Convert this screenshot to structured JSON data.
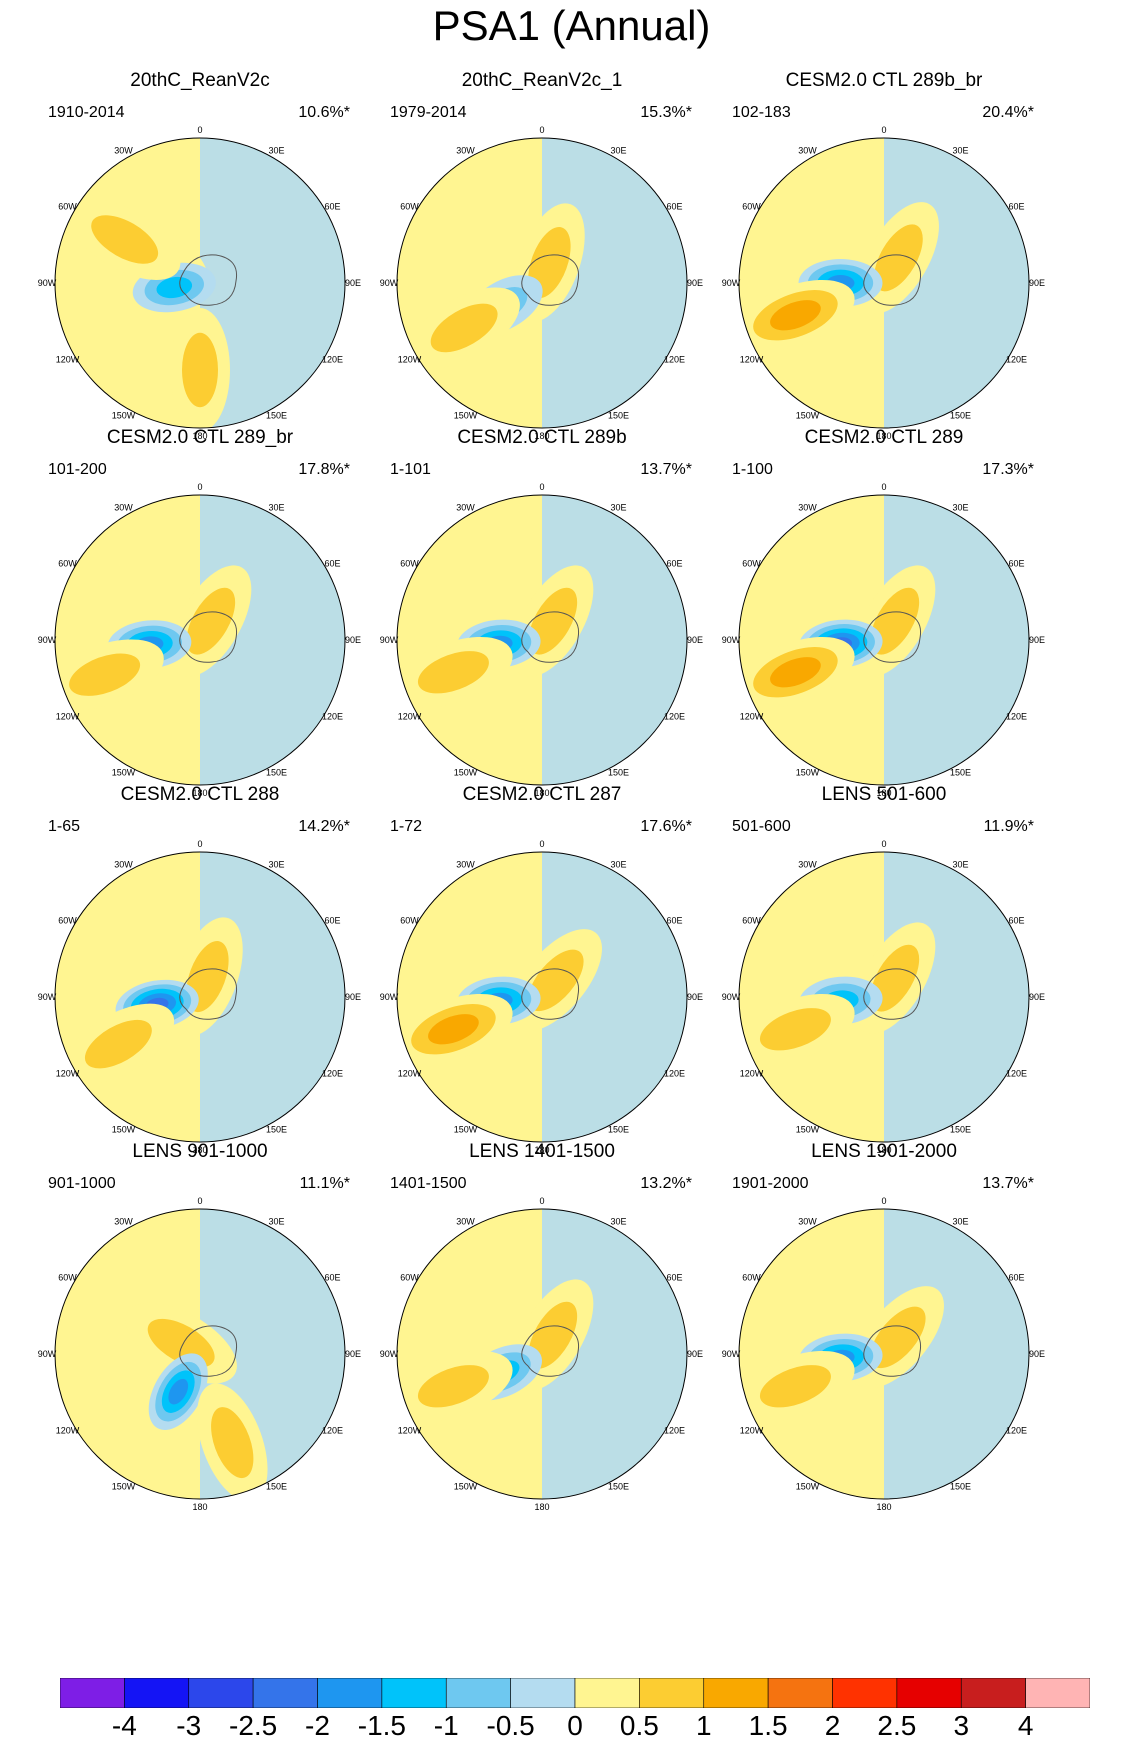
{
  "title": "PSA1 (Annual)",
  "chart_data": [
    {
      "type": "polar-contour-map",
      "title": "20thC_ReanV2c",
      "period": "1910-2014",
      "variance_explained": "10.6%*",
      "pattern": [
        {
          "lon": -60,
          "r": 0.38,
          "value": 0.5
        },
        {
          "lon": -100,
          "r": 0.18,
          "value": -1.5
        },
        {
          "lon": 180,
          "r": 0.6,
          "value": 1
        },
        {
          "lon": -60,
          "r": 0.6,
          "value": 1
        }
      ]
    },
    {
      "type": "polar-contour-map",
      "title": "20thC_ReanV2c_1",
      "period": "1979-2014",
      "variance_explained": "15.3%*",
      "pattern": [
        {
          "lon": 20,
          "r": 0.15,
          "value": 1
        },
        {
          "lon": -120,
          "r": 0.3,
          "value": -1
        },
        {
          "lon": -120,
          "r": 0.62,
          "value": 1
        }
      ]
    },
    {
      "type": "polar-contour-map",
      "title": "CESM2.0 CTL 289b_br",
      "period": "102-183",
      "variance_explained": "20.4%*",
      "pattern": [
        {
          "lon": 30,
          "r": 0.2,
          "value": 1
        },
        {
          "lon": -90,
          "r": 0.3,
          "value": -2
        },
        {
          "lon": -110,
          "r": 0.65,
          "value": 1.5
        }
      ]
    },
    {
      "type": "polar-contour-map",
      "title": "CESM2.0 CTL 289_br",
      "period": "101-200",
      "variance_explained": "17.8%*",
      "pattern": [
        {
          "lon": 30,
          "r": 0.15,
          "value": 1
        },
        {
          "lon": -95,
          "r": 0.35,
          "value": -2
        },
        {
          "lon": -110,
          "r": 0.7,
          "value": 1
        }
      ]
    },
    {
      "type": "polar-contour-map",
      "title": "CESM2.0 CTL 289b",
      "period": "1-101",
      "variance_explained": "13.7%*",
      "pattern": [
        {
          "lon": 30,
          "r": 0.15,
          "value": 1
        },
        {
          "lon": -95,
          "r": 0.3,
          "value": -2
        },
        {
          "lon": -110,
          "r": 0.65,
          "value": 1
        }
      ]
    },
    {
      "type": "polar-contour-map",
      "title": "CESM2.0 CTL 289",
      "period": "1-100",
      "variance_explained": "17.3%*",
      "pattern": [
        {
          "lon": 30,
          "r": 0.15,
          "value": 1
        },
        {
          "lon": -95,
          "r": 0.3,
          "value": -2.5
        },
        {
          "lon": -110,
          "r": 0.65,
          "value": 1.5
        }
      ]
    },
    {
      "type": "polar-contour-map",
      "title": "CESM2.0 CTL 288",
      "period": "1-65",
      "variance_explained": "14.2%*",
      "pattern": [
        {
          "lon": 20,
          "r": 0.15,
          "value": 1
        },
        {
          "lon": -100,
          "r": 0.3,
          "value": -2.5
        },
        {
          "lon": -120,
          "r": 0.65,
          "value": 1
        }
      ]
    },
    {
      "type": "polar-contour-map",
      "title": "CESM2.0 CTL 287",
      "period": "1-72",
      "variance_explained": "17.6%*",
      "pattern": [
        {
          "lon": 40,
          "r": 0.15,
          "value": 1
        },
        {
          "lon": -95,
          "r": 0.3,
          "value": -2
        },
        {
          "lon": -110,
          "r": 0.65,
          "value": 1.5
        }
      ]
    },
    {
      "type": "polar-contour-map",
      "title": "LENS 501-600",
      "period": "501-600",
      "variance_explained": "11.9%*",
      "pattern": [
        {
          "lon": 30,
          "r": 0.15,
          "value": 1
        },
        {
          "lon": -95,
          "r": 0.3,
          "value": -1.5
        },
        {
          "lon": -110,
          "r": 0.65,
          "value": 1
        }
      ]
    },
    {
      "type": "polar-contour-map",
      "title": "LENS 901-1000",
      "period": "901-1000",
      "variance_explained": "11.1%*",
      "pattern": [
        {
          "lon": -60,
          "r": 0.15,
          "value": 1
        },
        {
          "lon": -150,
          "r": 0.3,
          "value": -2
        },
        {
          "lon": 160,
          "r": 0.65,
          "value": 1
        }
      ]
    },
    {
      "type": "polar-contour-map",
      "title": "LENS 1401-1500",
      "period": "1401-1500",
      "variance_explained": "13.2%*",
      "pattern": [
        {
          "lon": 30,
          "r": 0.15,
          "value": 1
        },
        {
          "lon": -115,
          "r": 0.3,
          "value": -1.5
        },
        {
          "lon": -110,
          "r": 0.65,
          "value": 1
        }
      ]
    },
    {
      "type": "polar-contour-map",
      "title": "LENS 1901-2000",
      "period": "1901-2000",
      "variance_explained": "13.7%*",
      "pattern": [
        {
          "lon": 40,
          "r": 0.15,
          "value": 1
        },
        {
          "lon": -95,
          "r": 0.3,
          "value": -2
        },
        {
          "lon": -110,
          "r": 0.65,
          "value": 1
        }
      ]
    }
  ],
  "lon_labels": [
    "0",
    "30E",
    "60E",
    "90E",
    "120E",
    "150E",
    "180",
    "150W",
    "120W",
    "90W",
    "60W",
    "30W"
  ],
  "colorbar": {
    "labels": [
      "-4",
      "-3",
      "-2.5",
      "-2",
      "-1.5",
      "-1",
      "-0.5",
      "0",
      "0.5",
      "1",
      "1.5",
      "2",
      "2.5",
      "3",
      "4"
    ],
    "colors": [
      "#7e1ee6",
      "#1414f5",
      "#2c47eb",
      "#3474ea",
      "#1e96f0",
      "#00c3fa",
      "#6ec8f0",
      "#b4dcf0",
      "#fff591",
      "#fccd32",
      "#f9a800",
      "#f57310",
      "#ff3200",
      "#e60000",
      "#c81e1e",
      "#ffb4b4"
    ]
  }
}
